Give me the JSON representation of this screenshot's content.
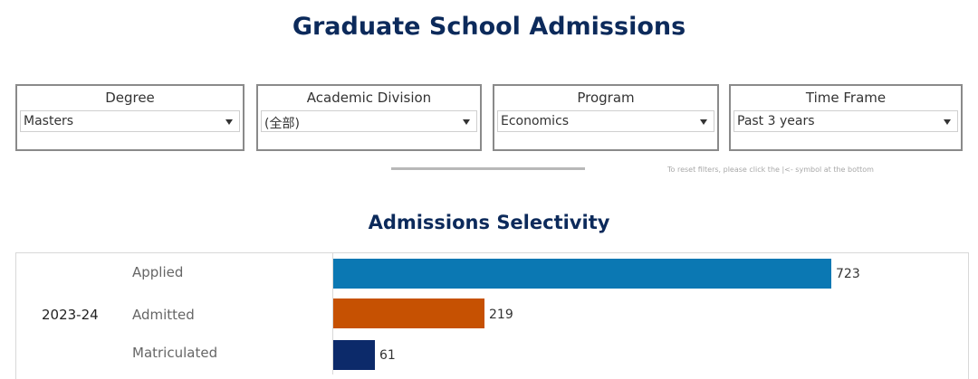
{
  "page": {
    "title": "Graduate School Admissions"
  },
  "filters": [
    {
      "label": "Degree",
      "value": "Masters",
      "icon": "chevron-down-icon"
    },
    {
      "label": "Academic Division",
      "value": "(全部)",
      "icon": "chevron-down-icon"
    },
    {
      "label": "Program",
      "value": "Economics",
      "icon": "chevron-down-icon"
    },
    {
      "label": "Time Frame",
      "value": "Past 3 years",
      "icon": "chevron-down-icon"
    }
  ],
  "reset_note": "To reset filters, please click the |<- symbol at the bottom",
  "section": {
    "title": "Admissions Selectivity"
  },
  "chart_data": {
    "type": "bar",
    "orientation": "horizontal",
    "group": "2023-24",
    "categories": [
      "Applied",
      "Admitted",
      "Matriculated"
    ],
    "values": [
      723,
      219,
      61
    ],
    "colors": [
      "#0b78b3",
      "#c65102",
      "#0c2a6a"
    ],
    "xlim": [
      0,
      723
    ],
    "grid": false,
    "title": "",
    "xlabel": "",
    "ylabel": ""
  }
}
